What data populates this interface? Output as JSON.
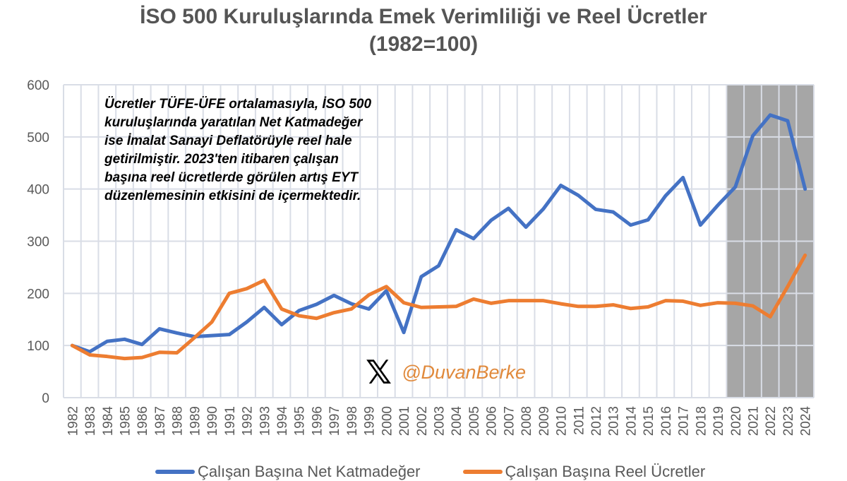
{
  "chart_data": {
    "type": "line",
    "title": "İSO 500 Kuruluşlarında Emek Verimliliği ve Reel Ücretler",
    "subtitle": "(1982=100)",
    "xlabel": "",
    "ylabel": "",
    "ylim": [
      0,
      600
    ],
    "yticks": [
      0,
      100,
      200,
      300,
      400,
      500,
      600
    ],
    "grid": true,
    "legend_placement": "bottom",
    "shaded_range": [
      "2020",
      "2024"
    ],
    "shade_color": "#a6a6a6",
    "categories": [
      "1982",
      "1983",
      "1984",
      "1985",
      "1986",
      "1987",
      "1988",
      "1989",
      "1990",
      "1991",
      "1992",
      "1993",
      "1994",
      "1995",
      "1996",
      "1997",
      "1998",
      "1999",
      "2000",
      "2001",
      "2002",
      "2003",
      "2004",
      "2005",
      "2006",
      "2007",
      "2008",
      "2009",
      "2010",
      "2011",
      "2012",
      "2013",
      "2014",
      "2015",
      "2016",
      "2017",
      "2018",
      "2019",
      "2020",
      "2021",
      "2022",
      "2023",
      "2024"
    ],
    "series": [
      {
        "name": "Çalışan Başına Net Katmadeğer",
        "color": "#4472c4",
        "values": [
          100,
          88,
          108,
          112,
          102,
          132,
          124,
          117,
          119,
          121,
          145,
          173,
          140,
          167,
          179,
          196,
          180,
          170,
          205,
          125,
          232,
          253,
          322,
          305,
          340,
          363,
          327,
          362,
          407,
          388,
          361,
          356,
          331,
          341,
          387,
          422,
          331,
          369,
          404,
          502,
          542,
          531,
          400
        ]
      },
      {
        "name": "Çalışan Başına Reel Ücretler",
        "color": "#ed7d31",
        "values": [
          100,
          82,
          79,
          75,
          77,
          87,
          86,
          115,
          145,
          200,
          209,
          225,
          170,
          157,
          152,
          163,
          170,
          197,
          213,
          182,
          173,
          174,
          175,
          189,
          181,
          186,
          186,
          186,
          180,
          175,
          175,
          178,
          171,
          174,
          186,
          185,
          177,
          182,
          181,
          176,
          155,
          213,
          273
        ]
      }
    ],
    "annotation": "Ücretler TÜFE-ÜFE ortalamasıyla, İSO 500 kuruluşlarında yaratılan Net Katmadeğer ise İmalat Sanayi Deflatörüyle reel hale getirilmiştir. 2023'ten itibaren çalışan başına reel ücretlerde görülen artış EYT düzenlemesinin etkisini de içermektedir."
  },
  "watermark": {
    "logo": "X",
    "handle": "@DuvanBerke"
  }
}
